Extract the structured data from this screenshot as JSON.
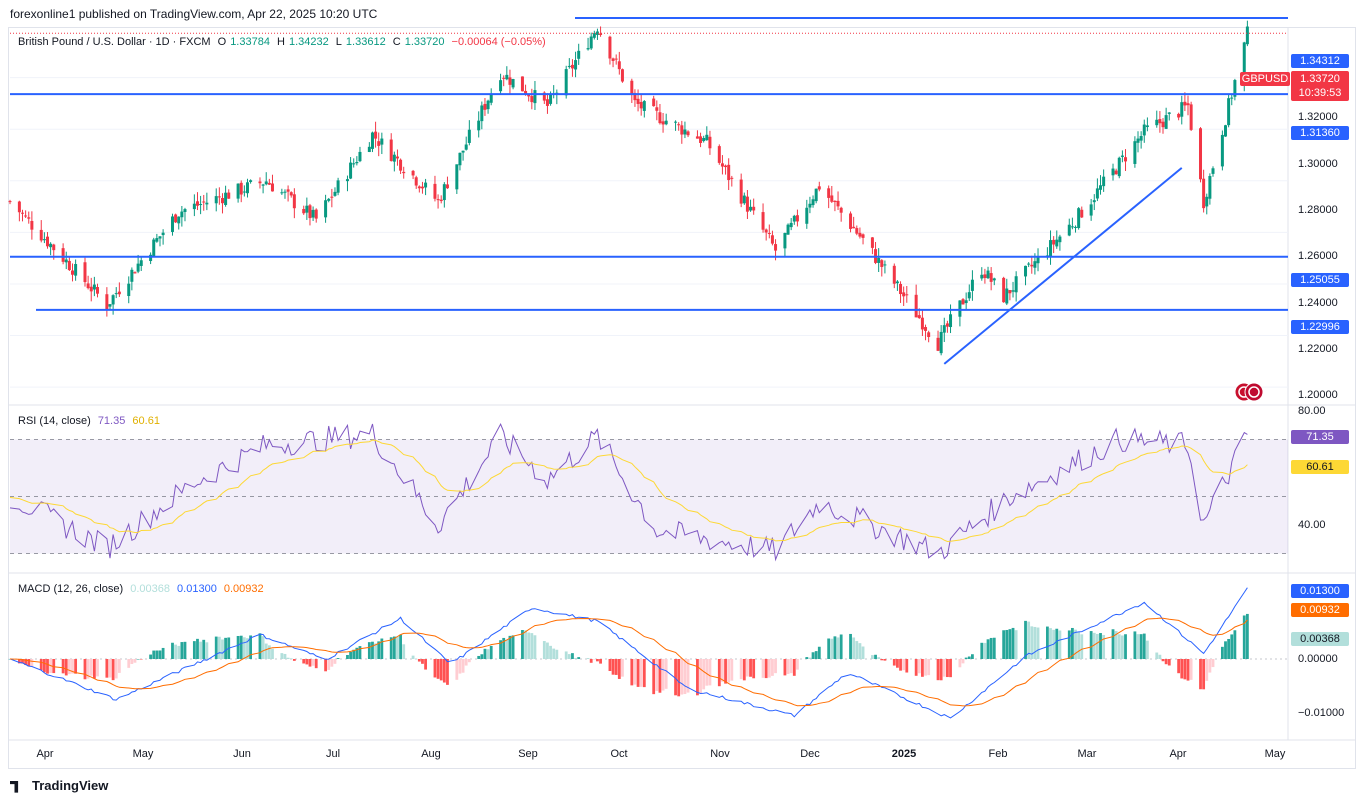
{
  "publisher": "forexonline1 published on TradingView.com, Apr 22, 2025 10:20 UTC",
  "symbol_title": "British Pound / U.S. Dollar · 1D · FXCM",
  "ohlc": {
    "o_label": "O",
    "o": "1.33784",
    "h_label": "H",
    "h": "1.34232",
    "l_label": "L",
    "l": "1.33612",
    "c_label": "C",
    "c": "1.33720",
    "change": "−0.00064 (−0.05%)"
  },
  "price_axis": [
    "1.32000",
    "1.30000",
    "1.28000",
    "1.26000",
    "1.24000",
    "1.22000",
    "1.20000"
  ],
  "horizontal_levels": [
    {
      "value": 1.34312,
      "label": "1.34312"
    },
    {
      "value": 1.3136,
      "label": "1.31360"
    },
    {
      "value": 1.25055,
      "label": "1.25055"
    },
    {
      "value": 1.22996,
      "label": "1.22996"
    }
  ],
  "current": {
    "ticker": "GBPUSD",
    "price": "1.33720",
    "countdown": "10:39:53"
  },
  "rsi": {
    "legend": "RSI (14, close)",
    "value": "71.35",
    "ma": "60.61",
    "axis": [
      "80.00",
      "40.00"
    ]
  },
  "macd": {
    "legend": "MACD (12, 26, close)",
    "hist": "0.00368",
    "macd": "0.01300",
    "signal": "0.00932",
    "axis": [
      "0.00000",
      "−0.01000"
    ]
  },
  "x_axis": [
    "Apr",
    "May",
    "Jun",
    "Jul",
    "Aug",
    "Sep",
    "Oct",
    "Nov",
    "Dec",
    "2025",
    "Feb",
    "Mar",
    "Apr",
    "May"
  ],
  "brand": "TradingView",
  "colors": {
    "up": "#089981",
    "down": "#f23645",
    "level": "#2962ff",
    "rsi": "#7e57c2",
    "rsi_ma": "#fdd835",
    "signal": "#ff6d00"
  },
  "chart_data": {
    "type": "candlestick",
    "title": "British Pound / U.S. Dollar · 1D · FXCM",
    "ylim": [
      1.195,
      1.347
    ],
    "x_range": [
      "2024-03-22",
      "2025-05-05"
    ],
    "anchor_closes": [
      [
        "2024-03-22",
        1.272
      ],
      [
        "2024-04-12",
        1.245
      ],
      [
        "2024-04-22",
        1.232
      ],
      [
        "2024-05-15",
        1.268
      ],
      [
        "2024-06-12",
        1.28
      ],
      [
        "2024-06-28",
        1.265
      ],
      [
        "2024-07-16",
        1.298
      ],
      [
        "2024-08-06",
        1.272
      ],
      [
        "2024-08-26",
        1.322
      ],
      [
        "2024-09-10",
        1.309
      ],
      [
        "2024-09-26",
        1.34
      ],
      [
        "2024-10-08",
        1.31
      ],
      [
        "2024-10-31",
        1.295
      ],
      [
        "2024-11-22",
        1.253
      ],
      [
        "2024-12-06",
        1.278
      ],
      [
        "2024-12-20",
        1.257
      ],
      [
        "2025-01-13",
        1.217
      ],
      [
        "2025-01-27",
        1.246
      ],
      [
        "2025-02-03",
        1.235
      ],
      [
        "2025-02-26",
        1.265
      ],
      [
        "2025-03-20",
        1.299
      ],
      [
        "2025-04-03",
        1.309
      ],
      [
        "2025-04-08",
        1.272
      ],
      [
        "2025-04-22",
        1.337
      ]
    ],
    "rsi_anchor": [
      [
        "2024-03-22",
        50
      ],
      [
        "2024-04-22",
        32
      ],
      [
        "2024-05-20",
        55
      ],
      [
        "2024-06-12",
        68
      ],
      [
        "2024-07-16",
        72
      ],
      [
        "2024-08-06",
        40
      ],
      [
        "2024-08-26",
        71
      ],
      [
        "2024-09-10",
        56
      ],
      [
        "2024-09-26",
        71
      ],
      [
        "2024-10-15",
        38
      ],
      [
        "2024-11-22",
        31
      ],
      [
        "2024-12-06",
        48
      ],
      [
        "2025-01-13",
        30
      ],
      [
        "2025-02-05",
        50
      ],
      [
        "2025-03-12",
        70
      ],
      [
        "2025-04-03",
        68
      ],
      [
        "2025-04-08",
        40
      ],
      [
        "2025-04-22",
        71.35
      ]
    ],
    "macd_anchor": [
      [
        "2024-03-22",
        0.0
      ],
      [
        "2024-04-25",
        -0.0075
      ],
      [
        "2024-06-10",
        0.0045
      ],
      [
        "2024-07-01",
        -0.0001
      ],
      [
        "2024-07-25",
        0.0075
      ],
      [
        "2024-08-10",
        -0.001
      ],
      [
        "2024-09-05",
        0.0095
      ],
      [
        "2024-09-26",
        0.007
      ],
      [
        "2024-10-25",
        -0.0055
      ],
      [
        "2024-11-28",
        -0.0105
      ],
      [
        "2024-12-15",
        -0.0025
      ],
      [
        "2025-01-17",
        -0.011
      ],
      [
        "2025-02-10",
        0.0005
      ],
      [
        "2025-03-20",
        0.0105
      ],
      [
        "2025-04-08",
        0.001
      ],
      [
        "2025-04-22",
        0.013
      ]
    ],
    "trendline": [
      [
        "2025-01-15",
        1.209
      ],
      [
        "2025-04-01",
        1.285
      ]
    ]
  }
}
